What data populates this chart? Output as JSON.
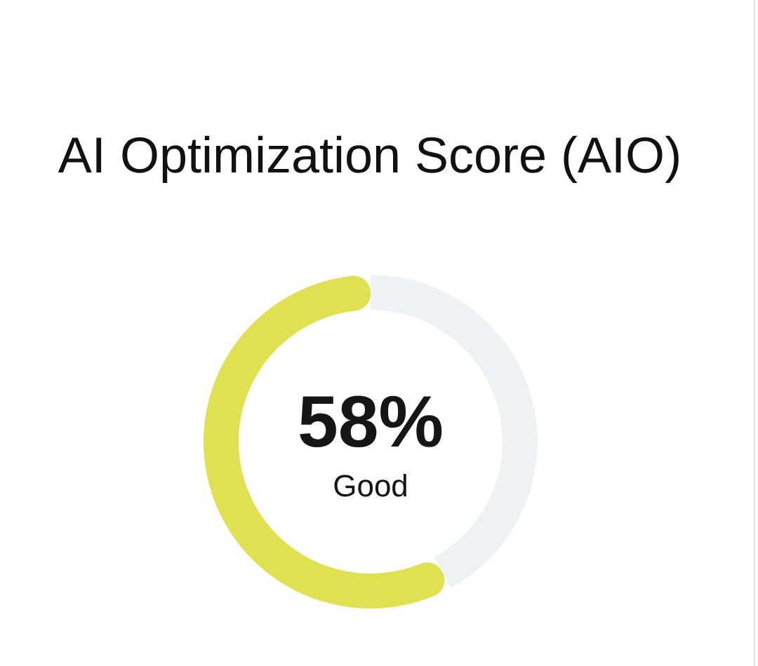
{
  "chart_data": {
    "type": "donut",
    "title": "AI Optimization Score (AIO)",
    "categories": [
      null,
      null
    ],
    "values": [
      58,
      42
    ],
    "colors": [
      "#dfe150",
      "#f0f1f3"
    ],
    "value_labels": [
      "58%",
      null
    ],
    "annotations": [
      "Good"
    ]
  }
}
